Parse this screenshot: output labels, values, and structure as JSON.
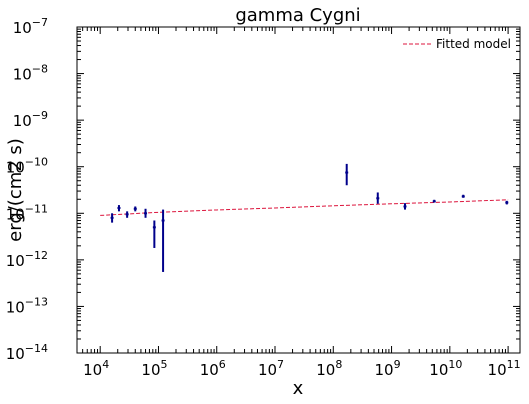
{
  "chart_data": {
    "type": "scatter",
    "title": "gamma Cygni",
    "xlabel": "x",
    "ylabel": "erg/(cm2 s)",
    "xscale": "log",
    "yscale": "log",
    "xlim": [
      4000.0,
      160000000000.0
    ],
    "ylim": [
      1e-14,
      1e-07
    ],
    "x_ticks": [
      10000.0,
      100000.0,
      1000000.0,
      10000000.0,
      100000000.0,
      1000000000.0,
      10000000000.0,
      100000000000.0
    ],
    "x_tick_labels": [
      {
        "base": "10",
        "exp": "4"
      },
      {
        "base": "10",
        "exp": "5"
      },
      {
        "base": "10",
        "exp": "6"
      },
      {
        "base": "10",
        "exp": "7"
      },
      {
        "base": "10",
        "exp": "8"
      },
      {
        "base": "10",
        "exp": "9"
      },
      {
        "base": "10",
        "exp": "10"
      },
      {
        "base": "10",
        "exp": "11"
      }
    ],
    "y_ticks": [
      1e-14,
      1e-13,
      1e-12,
      1e-11,
      1e-10,
      1e-09,
      1e-08,
      1e-07
    ],
    "y_tick_labels": [
      {
        "base": "10",
        "exp": "−14"
      },
      {
        "base": "10",
        "exp": "−13"
      },
      {
        "base": "10",
        "exp": "−12"
      },
      {
        "base": "10",
        "exp": "−11"
      },
      {
        "base": "10",
        "exp": "−10"
      },
      {
        "base": "10",
        "exp": "−9"
      },
      {
        "base": "10",
        "exp": "−8"
      },
      {
        "base": "10",
        "exp": "−7"
      }
    ],
    "legend": {
      "location": "top-right",
      "entries": [
        "Fitted model"
      ]
    },
    "grid": false,
    "colors": {
      "data": "#00008b",
      "model": "#dc143c",
      "axes": "#000000"
    },
    "series": [
      {
        "kind": "errorbar",
        "points": [
          {
            "x": 16000.0,
            "y": 8e-12,
            "ylo": 6.3e-12,
            "yhi": 1e-11
          },
          {
            "x": 21000.0,
            "y": 1.3e-11,
            "ylo": 1.1e-11,
            "yhi": 1.5e-11
          },
          {
            "x": 29000.0,
            "y": 9.5e-12,
            "ylo": 8e-12,
            "yhi": 1.1e-11
          },
          {
            "x": 40000.0,
            "y": 1.25e-11,
            "ylo": 1.1e-11,
            "yhi": 1.4e-11
          },
          {
            "x": 60000.0,
            "y": 1e-11,
            "ylo": 8e-12,
            "yhi": 1.25e-11
          },
          {
            "x": 85000.0,
            "y": 5e-12,
            "ylo": 1.8e-12,
            "yhi": 7e-12
          },
          {
            "x": 120000.0,
            "y": 7e-12,
            "ylo": 5.5e-13,
            "yhi": 1.2e-11
          },
          {
            "x": 170000000.0,
            "y": 7.5e-11,
            "ylo": 4e-11,
            "yhi": 1.15e-10
          },
          {
            "x": 580000000.0,
            "y": 2.1e-11,
            "ylo": 1.6e-11,
            "yhi": 2.8e-11
          },
          {
            "x": 1700000000.0,
            "y": 1.4e-11,
            "ylo": 1.2e-11,
            "yhi": 1.65e-11
          },
          {
            "x": 5400000000.0,
            "y": 1.8e-11,
            "ylo": 1.7e-11,
            "yhi": 1.95e-11
          },
          {
            "x": 17000000000.0,
            "y": 2.3e-11,
            "ylo": 2.15e-11,
            "yhi": 2.5e-11
          },
          {
            "x": 95000000000.0,
            "y": 1.7e-11,
            "ylo": 1.55e-11,
            "yhi": 1.85e-11
          }
        ]
      },
      {
        "name": "Fitted model",
        "kind": "dashed-line",
        "x": [
          10000.0,
          100000.0,
          1000000.0,
          10000000.0,
          100000000.0,
          1000000000.0,
          10000000000.0,
          100000000000.0
        ],
        "y": [
          9e-12,
          1.05e-11,
          1.18e-11,
          1.3e-11,
          1.45e-11,
          1.6e-11,
          1.75e-11,
          1.95e-11
        ]
      }
    ]
  }
}
